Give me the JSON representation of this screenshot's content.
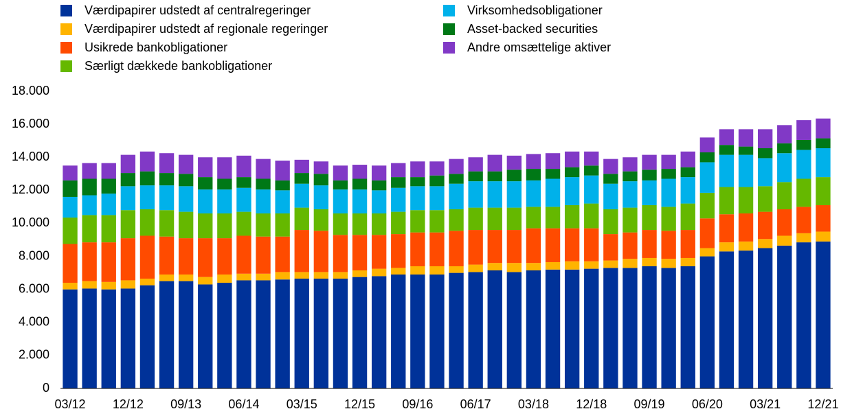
{
  "chart_data": {
    "type": "stacked_bar",
    "categories": [
      "03/12",
      null,
      null,
      "12/12",
      null,
      null,
      "09/13",
      null,
      null,
      "06/14",
      null,
      null,
      "03/15",
      null,
      null,
      "12/15",
      null,
      null,
      "09/16",
      null,
      null,
      "06/17",
      null,
      null,
      "03/18",
      null,
      null,
      "12/18",
      null,
      null,
      "09/19",
      null,
      null,
      "06/20",
      null,
      null,
      "03/21",
      null,
      null,
      "12/21"
    ],
    "series": [
      {
        "name": "Værdipapirer udstedt af centralregeringer",
        "color": "#003299",
        "values": [
          6000,
          6050,
          6000,
          6050,
          6250,
          6500,
          6500,
          6300,
          6400,
          6550,
          6550,
          6600,
          6650,
          6650,
          6650,
          6750,
          6800,
          6900,
          6900,
          6900,
          7000,
          7050,
          7150,
          7050,
          7150,
          7200,
          7200,
          7250,
          7300,
          7300,
          7400,
          7300,
          7400,
          8000,
          8300,
          8350,
          8500,
          8650,
          8850,
          8900
        ]
      },
      {
        "name": "Værdipapirer udstedt af regionale regeringer",
        "color": "#ffb400",
        "values": [
          400,
          450,
          450,
          500,
          400,
          400,
          400,
          450,
          500,
          400,
          400,
          450,
          400,
          400,
          400,
          400,
          450,
          400,
          500,
          500,
          400,
          450,
          450,
          550,
          450,
          450,
          500,
          450,
          450,
          550,
          500,
          550,
          500,
          500,
          550,
          550,
          550,
          600,
          550,
          600
        ]
      },
      {
        "name": "Usikrede bankobligationer",
        "color": "#ff4b00",
        "values": [
          2350,
          2350,
          2400,
          2550,
          2600,
          2300,
          2200,
          2350,
          2200,
          2300,
          2250,
          2150,
          2550,
          2500,
          2250,
          2150,
          2050,
          2050,
          2050,
          2050,
          2150,
          2100,
          2000,
          2000,
          2100,
          2050,
          2000,
          2000,
          1600,
          1600,
          1700,
          1700,
          1700,
          1800,
          1700,
          1700,
          1650,
          1600,
          1600,
          1600
        ]
      },
      {
        "name": "Særligt dækkede bankobligationer",
        "color": "#65b800",
        "values": [
          1600,
          1650,
          1650,
          1700,
          1600,
          1600,
          1600,
          1500,
          1500,
          1450,
          1400,
          1400,
          1350,
          1300,
          1300,
          1300,
          1300,
          1350,
          1350,
          1350,
          1300,
          1350,
          1350,
          1350,
          1300,
          1300,
          1400,
          1500,
          1500,
          1500,
          1500,
          1450,
          1600,
          1550,
          1650,
          1600,
          1550,
          1650,
          1700,
          1700
        ]
      },
      {
        "name": "Virksomhedsobligationer",
        "color": "#00b1ea",
        "values": [
          1250,
          1200,
          1300,
          1450,
          1450,
          1500,
          1550,
          1450,
          1450,
          1450,
          1450,
          1400,
          1450,
          1450,
          1450,
          1450,
          1400,
          1450,
          1450,
          1450,
          1550,
          1600,
          1600,
          1600,
          1600,
          1700,
          1700,
          1700,
          1550,
          1600,
          1500,
          1700,
          1600,
          1850,
          1950,
          1950,
          1700,
          1750,
          1750,
          1750
        ]
      },
      {
        "name": "Asset-backed securities",
        "color": "#007816",
        "values": [
          1000,
          1000,
          900,
          800,
          850,
          750,
          750,
          750,
          650,
          650,
          650,
          600,
          650,
          700,
          550,
          650,
          600,
          650,
          550,
          650,
          600,
          600,
          600,
          700,
          700,
          600,
          600,
          600,
          600,
          600,
          650,
          600,
          600,
          600,
          600,
          500,
          600,
          600,
          600,
          600
        ]
      },
      {
        "name": "Andre omsættelige aktiver",
        "color": "#8139c6",
        "values": [
          900,
          950,
          950,
          1100,
          1200,
          1200,
          1150,
          1200,
          1300,
          1300,
          1200,
          1200,
          800,
          750,
          900,
          850,
          900,
          850,
          950,
          850,
          900,
          850,
          1000,
          850,
          900,
          950,
          950,
          850,
          900,
          850,
          900,
          850,
          950,
          900,
          950,
          1050,
          1150,
          1100,
          1200,
          1200
        ]
      }
    ],
    "ylim": [
      0,
      18000
    ],
    "yticks": [
      0,
      {
        "value": 2000,
        "label": "2.000"
      },
      {
        "value": 4000,
        "label": "4.000"
      },
      {
        "value": 6000,
        "label": "6.000"
      },
      {
        "value": 8000,
        "label": "8.000"
      },
      {
        "value": 10000,
        "label": "10.000"
      },
      {
        "value": 12000,
        "label": "12.000"
      },
      {
        "value": 14000,
        "label": "14.000"
      },
      {
        "value": 16000,
        "label": "16.000"
      },
      {
        "value": 18000,
        "label": "18.000"
      }
    ],
    "grid": false
  }
}
